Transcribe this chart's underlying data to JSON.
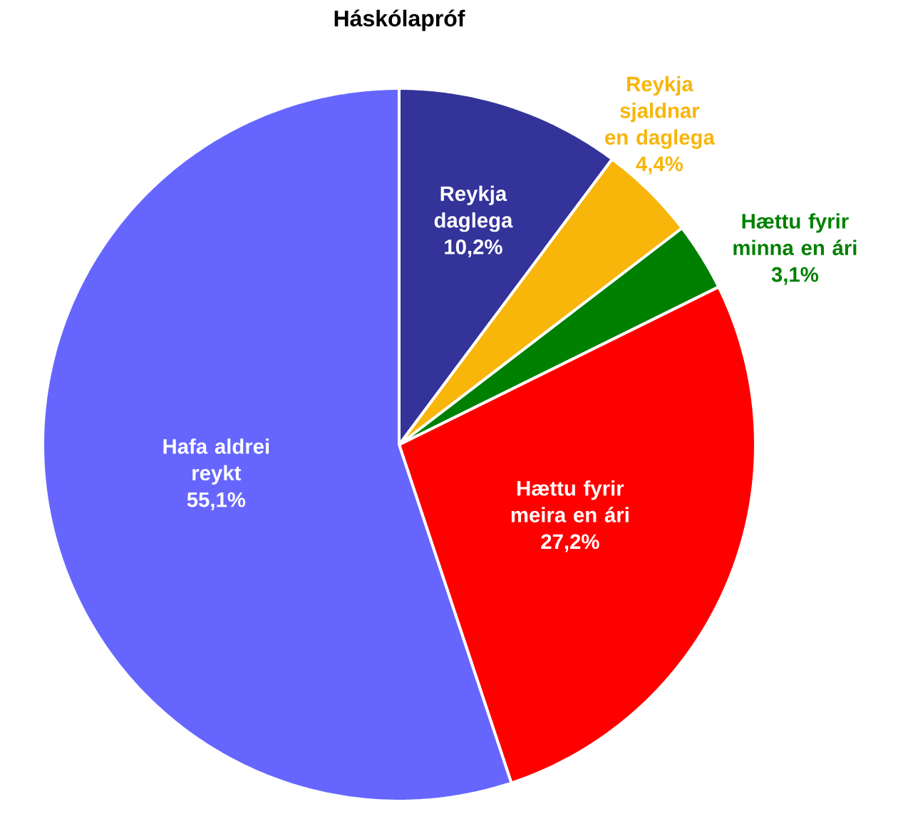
{
  "chart_data": {
    "type": "pie",
    "title": "Háskólapróf",
    "categories": [
      "Reykja daglega",
      "Reykja sjaldnar en daglega",
      "Hættu fyrir minna en ári",
      "Hættu fyrir meira en ári",
      "Hafa aldrei reykt"
    ],
    "values": [
      10.2,
      4.4,
      3.1,
      27.2,
      55.1
    ],
    "value_labels": [
      "10,2%",
      "4,4%",
      "3,1%",
      "27,2%",
      "55,1%"
    ],
    "colors": [
      "#333399",
      "#f8b50a",
      "#008000",
      "#ff0000",
      "#6666ff"
    ]
  }
}
